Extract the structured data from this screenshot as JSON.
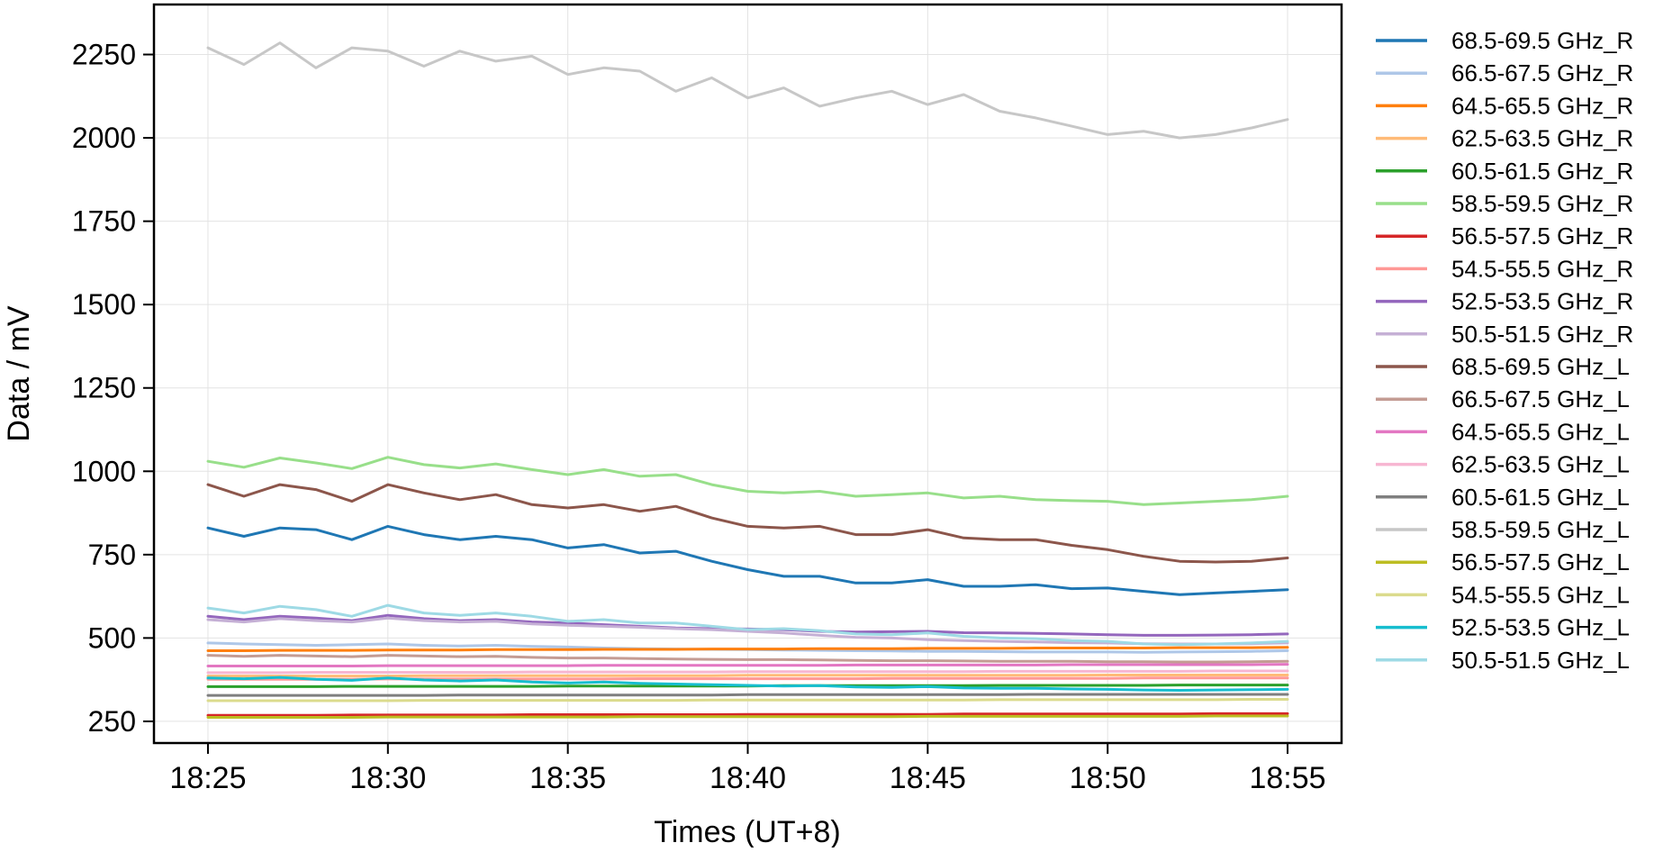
{
  "chart_data": {
    "type": "line",
    "title": "",
    "xlabel": "Times (UT+8)",
    "ylabel": "Data / mV",
    "x_ticks": [
      "18:25",
      "18:30",
      "18:35",
      "18:40",
      "18:45",
      "18:50",
      "18:55"
    ],
    "x": [
      "18:25",
      "18:26",
      "18:27",
      "18:28",
      "18:29",
      "18:30",
      "18:31",
      "18:32",
      "18:33",
      "18:34",
      "18:35",
      "18:36",
      "18:37",
      "18:38",
      "18:39",
      "18:40",
      "18:41",
      "18:42",
      "18:43",
      "18:44",
      "18:45",
      "18:46",
      "18:47",
      "18:48",
      "18:49",
      "18:50",
      "18:51",
      "18:52",
      "18:53",
      "18:54",
      "18:55"
    ],
    "x_range": [
      "18:23:30",
      "18:56:30"
    ],
    "ylim": [
      185,
      2400
    ],
    "y_ticks": [
      250,
      500,
      750,
      1000,
      1250,
      1500,
      1750,
      2000,
      2250
    ],
    "grid": true,
    "legend_position": "outside-right",
    "series": [
      {
        "name": "68.5-69.5 GHz_R",
        "color": "#1f77b4",
        "values": [
          830,
          805,
          830,
          825,
          795,
          835,
          810,
          795,
          805,
          795,
          770,
          780,
          755,
          760,
          730,
          705,
          685,
          685,
          665,
          665,
          675,
          655,
          655,
          660,
          648,
          650,
          640,
          630,
          635,
          640,
          645
        ]
      },
      {
        "name": "66.5-67.5 GHz_R",
        "color": "#aec7e8",
        "values": [
          485,
          482,
          480,
          478,
          480,
          482,
          478,
          476,
          478,
          475,
          473,
          470,
          468,
          467,
          466,
          465,
          464,
          463,
          462,
          461,
          460,
          460,
          459,
          458,
          458,
          458,
          457,
          458,
          459,
          460,
          462
        ]
      },
      {
        "name": "64.5-65.5 GHz_R",
        "color": "#ff7f0e",
        "values": [
          462,
          462,
          463,
          463,
          463,
          464,
          464,
          464,
          465,
          465,
          465,
          466,
          466,
          466,
          467,
          467,
          467,
          468,
          468,
          468,
          469,
          469,
          469,
          470,
          470,
          470,
          470,
          471,
          471,
          471,
          472
        ]
      },
      {
        "name": "62.5-63.5 GHz_R",
        "color": "#ffbb78",
        "values": [
          386,
          386,
          386,
          386,
          386,
          386,
          387,
          387,
          387,
          387,
          387,
          387,
          387,
          387,
          387,
          388,
          388,
          388,
          388,
          388,
          388,
          388,
          388,
          388,
          388,
          389,
          389,
          389,
          389,
          389,
          389
        ]
      },
      {
        "name": "60.5-61.5 GHz_R",
        "color": "#2ca02c",
        "values": [
          354,
          354,
          354,
          354,
          355,
          355,
          355,
          355,
          355,
          355,
          356,
          356,
          356,
          356,
          356,
          356,
          357,
          357,
          357,
          357,
          357,
          357,
          358,
          358,
          358,
          358,
          358,
          359,
          359,
          359,
          359
        ]
      },
      {
        "name": "58.5-59.5 GHz_R",
        "color": "#98df8a",
        "values": [
          1030,
          1012,
          1040,
          1025,
          1008,
          1042,
          1020,
          1010,
          1022,
          1005,
          990,
          1005,
          985,
          990,
          960,
          940,
          935,
          940,
          925,
          930,
          935,
          920,
          925,
          915,
          912,
          910,
          900,
          905,
          910,
          915,
          925
        ]
      },
      {
        "name": "56.5-57.5 GHz_R",
        "color": "#d62728",
        "values": [
          268,
          268,
          268,
          268,
          269,
          269,
          269,
          269,
          269,
          270,
          270,
          270,
          270,
          270,
          270,
          271,
          271,
          271,
          271,
          271,
          271,
          272,
          272,
          272,
          272,
          272,
          272,
          272,
          273,
          273,
          273
        ]
      },
      {
        "name": "54.5-55.5 GHz_R",
        "color": "#ff9896",
        "values": [
          376,
          376,
          376,
          376,
          376,
          377,
          377,
          377,
          377,
          377,
          377,
          377,
          378,
          378,
          378,
          378,
          378,
          378,
          378,
          379,
          379,
          379,
          379,
          379,
          379,
          379,
          380,
          380,
          380,
          380,
          380
        ]
      },
      {
        "name": "52.5-53.5 GHz_R",
        "color": "#9467bd",
        "values": [
          565,
          555,
          565,
          560,
          552,
          568,
          558,
          552,
          555,
          548,
          545,
          540,
          535,
          530,
          528,
          527,
          525,
          520,
          518,
          519,
          520,
          516,
          515,
          514,
          512,
          510,
          508,
          508,
          509,
          510,
          512
        ]
      },
      {
        "name": "50.5-51.5 GHz_R",
        "color": "#c5b0d5",
        "values": [
          555,
          548,
          558,
          552,
          548,
          560,
          552,
          548,
          550,
          542,
          538,
          535,
          532,
          528,
          525,
          520,
          515,
          508,
          502,
          500,
          495,
          492,
          490,
          488,
          486,
          485,
          483,
          482,
          482,
          483,
          485
        ]
      },
      {
        "name": "68.5-69.5 GHz_L",
        "color": "#8c564b",
        "values": [
          960,
          925,
          960,
          945,
          910,
          960,
          935,
          915,
          930,
          900,
          890,
          900,
          880,
          895,
          860,
          835,
          830,
          835,
          810,
          810,
          825,
          800,
          795,
          795,
          778,
          765,
          745,
          730,
          728,
          730,
          740
        ]
      },
      {
        "name": "66.5-67.5 GHz_L",
        "color": "#c49c94",
        "values": [
          448,
          445,
          448,
          446,
          444,
          448,
          446,
          444,
          445,
          442,
          440,
          440,
          438,
          437,
          436,
          435,
          435,
          434,
          433,
          432,
          432,
          431,
          430,
          430,
          430,
          429,
          429,
          428,
          428,
          429,
          430
        ]
      },
      {
        "name": "64.5-65.5 GHz_L",
        "color": "#e377c2",
        "values": [
          416,
          416,
          416,
          416,
          416,
          417,
          417,
          417,
          417,
          417,
          417,
          418,
          418,
          418,
          418,
          418,
          418,
          418,
          419,
          419,
          419,
          419,
          419,
          419,
          420,
          420,
          420,
          420,
          420,
          420,
          421
        ]
      },
      {
        "name": "62.5-63.5 GHz_L",
        "color": "#f7b6d2",
        "values": [
          396,
          396,
          396,
          397,
          397,
          397,
          397,
          397,
          397,
          398,
          398,
          398,
          398,
          398,
          398,
          399,
          399,
          399,
          399,
          399,
          399,
          399,
          400,
          400,
          400,
          400,
          400,
          400,
          401,
          401,
          401
        ]
      },
      {
        "name": "60.5-61.5 GHz_L",
        "color": "#7f7f7f",
        "values": [
          328,
          328,
          328,
          328,
          328,
          328,
          328,
          329,
          329,
          329,
          329,
          329,
          329,
          329,
          329,
          330,
          330,
          330,
          330,
          330,
          330,
          330,
          330,
          331,
          331,
          331,
          331,
          331,
          331,
          331,
          331
        ]
      },
      {
        "name": "58.5-59.5 GHz_L",
        "color": "#c7c7c7",
        "values": [
          2270,
          2220,
          2285,
          2210,
          2270,
          2260,
          2215,
          2260,
          2230,
          2245,
          2190,
          2210,
          2200,
          2140,
          2180,
          2120,
          2150,
          2095,
          2120,
          2140,
          2100,
          2130,
          2080,
          2060,
          2035,
          2010,
          2020,
          2000,
          2010,
          2030,
          2055
        ]
      },
      {
        "name": "56.5-57.5 GHz_L",
        "color": "#bcbd22",
        "values": [
          262,
          262,
          262,
          262,
          262,
          263,
          263,
          263,
          263,
          263,
          263,
          263,
          264,
          264,
          264,
          264,
          264,
          264,
          264,
          264,
          265,
          265,
          265,
          265,
          265,
          265,
          265,
          265,
          266,
          266,
          266
        ]
      },
      {
        "name": "54.5-55.5 GHz_L",
        "color": "#dbdb8d",
        "values": [
          312,
          312,
          312,
          312,
          312,
          312,
          313,
          313,
          313,
          313,
          313,
          313,
          313,
          313,
          314,
          314,
          314,
          314,
          314,
          314,
          314,
          314,
          315,
          315,
          315,
          315,
          315,
          315,
          315,
          316,
          316
        ]
      },
      {
        "name": "52.5-53.5 GHz_L",
        "color": "#17becf",
        "values": [
          380,
          378,
          382,
          376,
          373,
          380,
          374,
          371,
          374,
          368,
          365,
          368,
          364,
          362,
          360,
          358,
          356,
          357,
          353,
          352,
          354,
          350,
          349,
          349,
          347,
          346,
          344,
          343,
          344,
          345,
          346
        ]
      },
      {
        "name": "50.5-51.5 GHz_L",
        "color": "#9edae5",
        "values": [
          590,
          575,
          595,
          585,
          565,
          598,
          575,
          568,
          575,
          565,
          550,
          555,
          545,
          545,
          535,
          525,
          528,
          522,
          512,
          510,
          515,
          505,
          500,
          498,
          492,
          490,
          482,
          480,
          482,
          485,
          490
        ]
      }
    ]
  }
}
